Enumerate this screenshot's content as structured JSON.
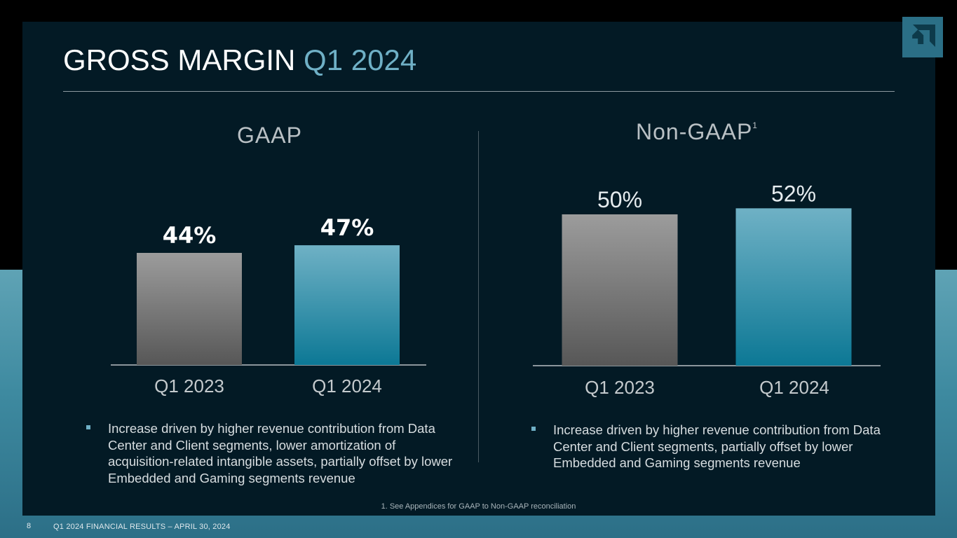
{
  "title": {
    "main": "GROSS MARGIN",
    "accent": "Q1 2024"
  },
  "colors": {
    "accent": "#6fb0c6",
    "bar_gray": "#8a8a8a",
    "bar_teal": "#1f8aa5"
  },
  "logo": {
    "icon": "amd-arrow-icon"
  },
  "chart_data": [
    {
      "type": "bar",
      "title": "GAAP",
      "categories": [
        "Q1 2023",
        "Q1 2024"
      ],
      "values": [
        44,
        47
      ],
      "data_labels": [
        "44%",
        "47%"
      ],
      "ylabel": "",
      "xlabel": ""
    },
    {
      "type": "bar",
      "title": "Non-GAAP",
      "title_footnote": "1",
      "categories": [
        "Q1 2023",
        "Q1 2024"
      ],
      "values": [
        50,
        52
      ],
      "data_labels": [
        "50%",
        "52%"
      ],
      "ylabel": "",
      "xlabel": ""
    }
  ],
  "bullets": {
    "gaap": "Increase driven by higher revenue contribution from Data Center and Client segments, lower amortization of acquisition-related intangible assets, partially offset by lower Embedded and Gaming segments revenue",
    "non_gaap": "Increase driven by higher revenue contribution from Data Center and Client segments, partially offset by lower Embedded and Gaming segments revenue"
  },
  "footnote": "1. See Appendices for GAAP to Non-GAAP reconciliation",
  "footer": {
    "page_number": "8",
    "text": "Q1 2024 FINANCIAL RESULTS – APRIL 30, 2024"
  }
}
